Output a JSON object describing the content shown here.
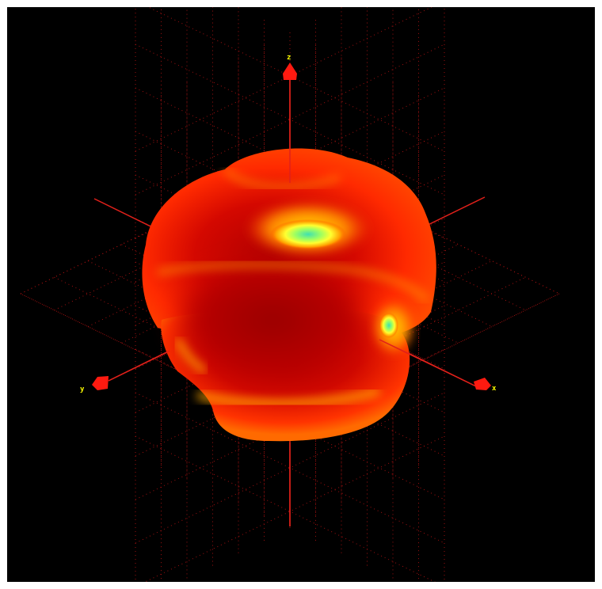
{
  "scene": {
    "background_color": "#000000",
    "grid_color": "#a01010",
    "axis_color": "#e0201a",
    "arrow_color": "#ff1a10",
    "label_color": "#ffff00",
    "surface_colors": [
      "#c00000",
      "#ff2a00",
      "#ffa500",
      "#ffff40",
      "#40ffa0"
    ],
    "axes": [
      {
        "label": "z",
        "name": "z-axis"
      },
      {
        "label": "x",
        "name": "x-axis"
      },
      {
        "label": "y",
        "name": "y-axis"
      }
    ]
  }
}
